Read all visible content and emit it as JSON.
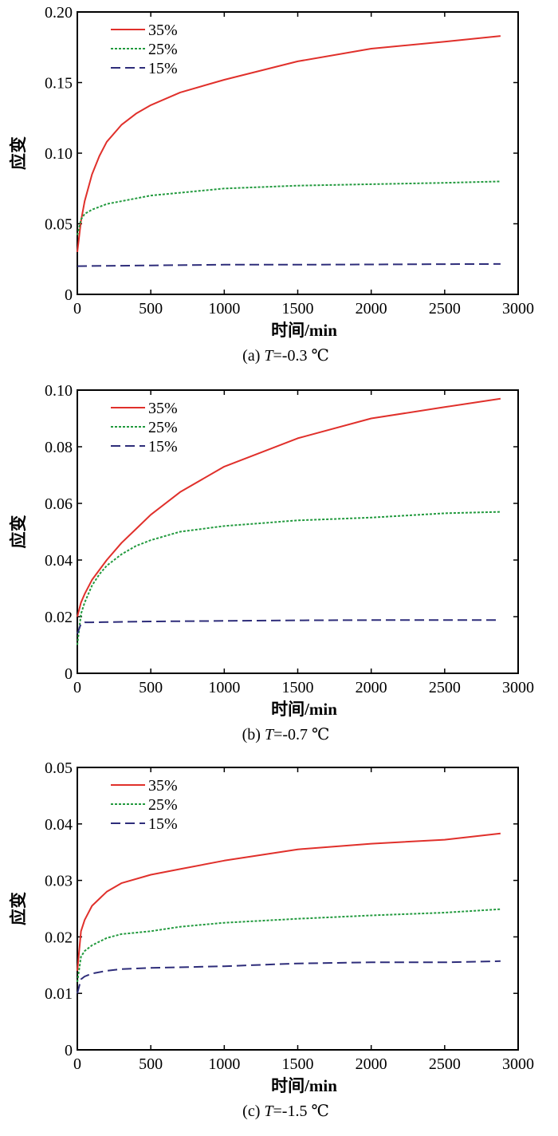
{
  "chart_data": [
    {
      "type": "line",
      "caption_prefix": "(a)",
      "caption_var": "T",
      "caption_value": "=-0.3 ℃",
      "xlabel": "时间/min",
      "ylabel": "应变",
      "xlim": [
        0,
        3000
      ],
      "ylim": [
        0,
        0.2
      ],
      "xticks": [
        "0",
        "500",
        "1000",
        "1500",
        "2000",
        "2500",
        "3000"
      ],
      "yticks": [
        "0",
        "0.05",
        "0.10",
        "0.15",
        "0.20"
      ],
      "legend": "top-left",
      "grid": false,
      "series": [
        {
          "name": "35%",
          "color": "#e0302b",
          "style": "solid",
          "x": [
            0,
            25,
            50,
            100,
            150,
            200,
            300,
            400,
            500,
            700,
            1000,
            1500,
            2000,
            2500,
            2880
          ],
          "y": [
            0.03,
            0.052,
            0.066,
            0.085,
            0.098,
            0.108,
            0.12,
            0.128,
            0.134,
            0.143,
            0.152,
            0.165,
            0.174,
            0.179,
            0.183
          ]
        },
        {
          "name": "25%",
          "color": "#229a3e",
          "style": "dotted",
          "x": [
            0,
            25,
            50,
            100,
            150,
            200,
            300,
            500,
            700,
            1000,
            1500,
            2000,
            2500,
            2880
          ],
          "y": [
            0.042,
            0.053,
            0.057,
            0.06,
            0.062,
            0.064,
            0.066,
            0.07,
            0.072,
            0.075,
            0.077,
            0.078,
            0.079,
            0.08
          ]
        },
        {
          "name": "15%",
          "color": "#2e2d7a",
          "style": "dashed",
          "x": [
            0,
            500,
            1000,
            1500,
            2000,
            2500,
            2880
          ],
          "y": [
            0.02,
            0.0205,
            0.021,
            0.021,
            0.0212,
            0.0214,
            0.0215
          ]
        }
      ]
    },
    {
      "type": "line",
      "caption_prefix": "(b)",
      "caption_var": "T",
      "caption_value": "=-0.7 ℃",
      "xlabel": "时间/min",
      "ylabel": "应变",
      "xlim": [
        0,
        3000
      ],
      "ylim": [
        0,
        0.1
      ],
      "xticks": [
        "0",
        "500",
        "1000",
        "1500",
        "2000",
        "2500",
        "3000"
      ],
      "yticks": [
        "0",
        "0.02",
        "0.04",
        "0.06",
        "0.08",
        "0.10"
      ],
      "legend": "top-left",
      "grid": false,
      "series": [
        {
          "name": "35%",
          "color": "#e0302b",
          "style": "solid",
          "x": [
            0,
            25,
            50,
            100,
            200,
            300,
            400,
            500,
            700,
            1000,
            1500,
            2000,
            2500,
            2880
          ],
          "y": [
            0.02,
            0.025,
            0.028,
            0.033,
            0.04,
            0.046,
            0.051,
            0.056,
            0.064,
            0.073,
            0.083,
            0.09,
            0.094,
            0.097
          ]
        },
        {
          "name": "25%",
          "color": "#229a3e",
          "style": "dotted",
          "x": [
            0,
            25,
            50,
            100,
            150,
            200,
            300,
            400,
            500,
            700,
            1000,
            1500,
            2000,
            2500,
            2880
          ],
          "y": [
            0.01,
            0.021,
            0.025,
            0.031,
            0.035,
            0.038,
            0.042,
            0.045,
            0.047,
            0.05,
            0.052,
            0.054,
            0.055,
            0.0565,
            0.057
          ]
        },
        {
          "name": "15%",
          "color": "#2e2d7a",
          "style": "dashed",
          "x": [
            0,
            25,
            50,
            100,
            500,
            1000,
            1500,
            2000,
            2500,
            2880
          ],
          "y": [
            0.014,
            0.0175,
            0.018,
            0.018,
            0.0183,
            0.0185,
            0.0187,
            0.0188,
            0.0188,
            0.0188
          ]
        }
      ]
    },
    {
      "type": "line",
      "caption_prefix": "(c)",
      "caption_var": "T",
      "caption_value": "=-1.5 ℃",
      "xlabel": "时间/min",
      "ylabel": "应变",
      "xlim": [
        0,
        3000
      ],
      "ylim": [
        0,
        0.05
      ],
      "xticks": [
        "0",
        "500",
        "1000",
        "1500",
        "2000",
        "2500",
        "3000"
      ],
      "yticks": [
        "0",
        "0.01",
        "0.02",
        "0.03",
        "0.04",
        "0.05"
      ],
      "legend": "top-left",
      "grid": false,
      "series": [
        {
          "name": "35%",
          "color": "#e0302b",
          "style": "solid",
          "x": [
            0,
            25,
            50,
            100,
            200,
            300,
            500,
            700,
            1000,
            1500,
            2000,
            2500,
            2880
          ],
          "y": [
            0.014,
            0.021,
            0.023,
            0.0255,
            0.028,
            0.0295,
            0.031,
            0.032,
            0.0335,
            0.0355,
            0.0365,
            0.0372,
            0.0383
          ]
        },
        {
          "name": "25%",
          "color": "#229a3e",
          "style": "dotted",
          "x": [
            0,
            25,
            50,
            100,
            200,
            300,
            500,
            700,
            1000,
            1500,
            2000,
            2500,
            2880
          ],
          "y": [
            0.012,
            0.0165,
            0.0175,
            0.0185,
            0.0198,
            0.0205,
            0.021,
            0.0218,
            0.0225,
            0.0232,
            0.0238,
            0.0243,
            0.0249
          ]
        },
        {
          "name": "15%",
          "color": "#2e2d7a",
          "style": "dashed",
          "x": [
            0,
            25,
            50,
            100,
            200,
            300,
            500,
            1000,
            1500,
            2000,
            2500,
            2880
          ],
          "y": [
            0.01,
            0.0125,
            0.013,
            0.0135,
            0.014,
            0.0143,
            0.0145,
            0.0148,
            0.0153,
            0.0155,
            0.0155,
            0.0157
          ]
        }
      ]
    }
  ]
}
